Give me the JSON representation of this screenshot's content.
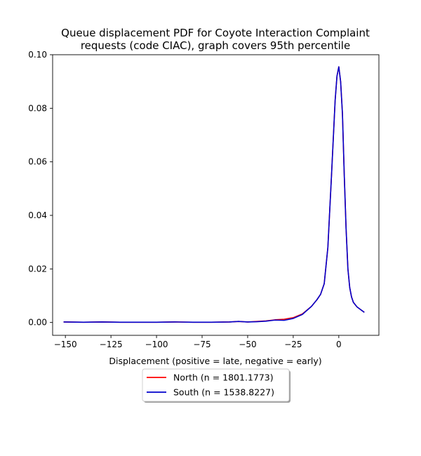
{
  "chart_data": {
    "type": "line",
    "title": "Queue displacement PDF for Coyote Interaction Complaint requests (code CIAC), graph covers 95th percentile",
    "title_lines": [
      "Queue displacement PDF for Coyote Interaction Complaint",
      "requests (code CIAC), graph covers 95th percentile"
    ],
    "xlabel": "Displacement (positive = late, negative = early)",
    "ylabel": "",
    "xlim": [
      -157,
      22
    ],
    "ylim": [
      -0.0048,
      0.1
    ],
    "xticks": [
      -150,
      -125,
      -100,
      -75,
      -50,
      -25,
      0
    ],
    "xtick_labels": [
      "−150",
      "−125",
      "−100",
      "−75",
      "−50",
      "−25",
      "0"
    ],
    "yticks": [
      0.0,
      0.02,
      0.04,
      0.06,
      0.08,
      0.1
    ],
    "ytick_labels": [
      "0.00",
      "0.02",
      "0.04",
      "0.06",
      "0.08",
      "0.10"
    ],
    "grid": false,
    "legend_placement": "below plot, centered",
    "series": [
      {
        "name": "North (n = 1801.1773)",
        "color": "#ff0000",
        "x": [
          -151,
          -140,
          -130,
          -120,
          -110,
          -100,
          -90,
          -80,
          -70,
          -60,
          -55,
          -50,
          -45,
          -40,
          -35,
          -30,
          -25,
          -20,
          -15,
          -12,
          -10,
          -8,
          -6,
          -4,
          -2,
          -1,
          0,
          1,
          2,
          3,
          4,
          5,
          6,
          7,
          8,
          10,
          12,
          14
        ],
        "y": [
          0.0002,
          0.0001,
          0.0002,
          0.0001,
          0.0001,
          0.0001,
          0.0002,
          0.0001,
          0.0001,
          0.0002,
          0.0004,
          0.0002,
          0.0004,
          0.0006,
          0.001,
          0.0012,
          0.0018,
          0.0032,
          0.006,
          0.0085,
          0.0105,
          0.0145,
          0.028,
          0.055,
          0.083,
          0.092,
          0.0955,
          0.09,
          0.078,
          0.055,
          0.035,
          0.02,
          0.013,
          0.0095,
          0.0075,
          0.0058,
          0.0048,
          0.0038
        ]
      },
      {
        "name": "South (n = 1538.8227)",
        "color": "#0000cc",
        "x": [
          -151,
          -140,
          -130,
          -120,
          -110,
          -100,
          -90,
          -80,
          -70,
          -60,
          -55,
          -50,
          -45,
          -40,
          -35,
          -30,
          -25,
          -20,
          -15,
          -12,
          -10,
          -8,
          -6,
          -4,
          -2,
          -1,
          0,
          1,
          2,
          3,
          4,
          5,
          6,
          7,
          8,
          10,
          12,
          14
        ],
        "y": [
          0.0002,
          0.0001,
          0.0002,
          0.0001,
          0.0001,
          0.0001,
          0.0002,
          0.0001,
          0.0001,
          0.0002,
          0.0004,
          0.0002,
          0.0003,
          0.0005,
          0.0009,
          0.0008,
          0.0015,
          0.003,
          0.006,
          0.0085,
          0.0105,
          0.0145,
          0.028,
          0.055,
          0.083,
          0.092,
          0.0955,
          0.09,
          0.078,
          0.055,
          0.035,
          0.02,
          0.013,
          0.0095,
          0.0075,
          0.0058,
          0.0048,
          0.0038
        ]
      }
    ]
  }
}
